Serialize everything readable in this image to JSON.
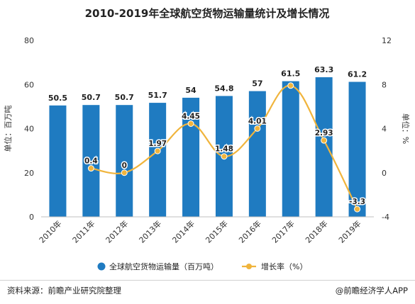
{
  "chart_data": {
    "type": "bar",
    "title": "2010-2019年全球航空货物运输量统计及增长情况",
    "categories": [
      "2010年",
      "2011年",
      "2012年",
      "2013年",
      "2014年",
      "2015年",
      "2016年",
      "2017年",
      "2018年",
      "2019年"
    ],
    "series": [
      {
        "name": "全球航空货物运输量（百万吨）",
        "type": "bar",
        "axis": "left",
        "color": "#1f7bc1",
        "values": [
          50.5,
          50.7,
          50.7,
          51.7,
          54,
          54.8,
          57,
          61.5,
          63.3,
          61.2
        ],
        "labels": [
          "50.5",
          "50.7",
          "50.7",
          "51.7",
          "54",
          "54.8",
          "57",
          "61.5",
          "63.3",
          "61.2"
        ]
      },
      {
        "name": "增长率（%）",
        "type": "line",
        "axis": "right",
        "color": "#f0b43c",
        "values": [
          null,
          0.4,
          0,
          1.97,
          4.45,
          1.48,
          4.01,
          7.9,
          2.93,
          -3.3
        ],
        "labels": [
          "",
          "0.4",
          "0",
          "1.97",
          "4.45",
          "1.48",
          "4.01",
          "",
          "2.93",
          "-3.3"
        ]
      }
    ],
    "y_left": {
      "label": "单位：百万吨",
      "ylim": [
        0,
        80
      ],
      "ticks": [
        0,
        20,
        40,
        60,
        80
      ]
    },
    "y_right": {
      "label": "单位：%",
      "ylim": [
        -4,
        12
      ],
      "ticks": [
        -4,
        0,
        4,
        8,
        12
      ]
    },
    "legend_position": "bottom",
    "grid": false
  },
  "footer": {
    "source": "资料来源：前瞻产业研究院整理",
    "credit": "@前瞻经济学人APP"
  }
}
